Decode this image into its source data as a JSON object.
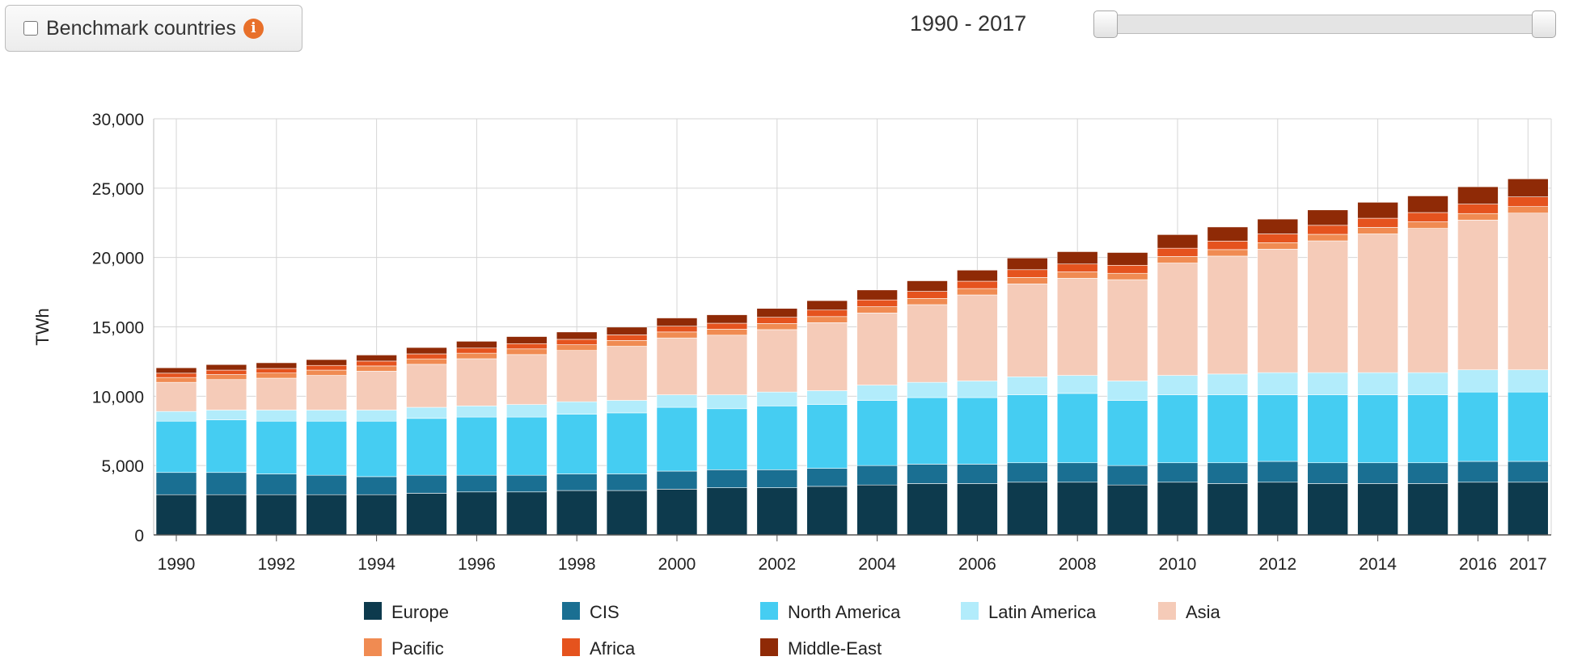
{
  "controls": {
    "benchmark_label": "Benchmark countries",
    "info_glyph": "i",
    "range_label": "1990 - 2017",
    "range_start": 1990,
    "range_end": 2017
  },
  "colors": {
    "Europe": "#0d3a4d",
    "CIS": "#1a6f92",
    "North America": "#45cdf2",
    "Latin America": "#b2ecfb",
    "Asia": "#f5cbb8",
    "Pacific": "#f08b52",
    "Africa": "#e5531e",
    "Middle-East": "#8f2a06"
  },
  "chart_data": {
    "type": "bar",
    "stacked": true,
    "ylabel": "TWh",
    "xlabel": "",
    "ylim": [
      0,
      30000
    ],
    "yticks": [
      "0",
      "5,000",
      "10,000",
      "15,000",
      "20,000",
      "25,000",
      "30,000"
    ],
    "xtick_labels": [
      "1990",
      "1992",
      "1994",
      "1996",
      "1998",
      "2000",
      "2002",
      "2004",
      "2006",
      "2008",
      "2010",
      "2012",
      "2014",
      "2016",
      "2017"
    ],
    "categories": [
      "1990",
      "1991",
      "1992",
      "1993",
      "1994",
      "1995",
      "1996",
      "1997",
      "1998",
      "1999",
      "2000",
      "2001",
      "2002",
      "2003",
      "2004",
      "2005",
      "2006",
      "2007",
      "2008",
      "2009",
      "2010",
      "2011",
      "2012",
      "2013",
      "2014",
      "2015",
      "2016",
      "2017"
    ],
    "grid": true,
    "legend_position": "bottom",
    "series": [
      {
        "name": "Europe",
        "values": [
          2900,
          2900,
          2900,
          2900,
          2900,
          3000,
          3100,
          3100,
          3200,
          3200,
          3300,
          3400,
          3400,
          3500,
          3600,
          3700,
          3700,
          3800,
          3800,
          3600,
          3800,
          3700,
          3800,
          3700,
          3700,
          3700,
          3800,
          3800
        ]
      },
      {
        "name": "CIS",
        "values": [
          1600,
          1600,
          1500,
          1400,
          1300,
          1300,
          1200,
          1200,
          1200,
          1200,
          1300,
          1300,
          1300,
          1300,
          1400,
          1400,
          1400,
          1400,
          1400,
          1400,
          1400,
          1500,
          1500,
          1500,
          1500,
          1500,
          1500,
          1500
        ]
      },
      {
        "name": "North America",
        "values": [
          3700,
          3800,
          3800,
          3900,
          4000,
          4100,
          4200,
          4200,
          4300,
          4400,
          4600,
          4400,
          4600,
          4600,
          4700,
          4800,
          4800,
          4900,
          5000,
          4700,
          4900,
          4900,
          4800,
          4900,
          4900,
          4900,
          5000,
          5000
        ]
      },
      {
        "name": "Latin America",
        "values": [
          700,
          700,
          800,
          800,
          800,
          800,
          800,
          900,
          900,
          900,
          900,
          1000,
          1000,
          1000,
          1100,
          1100,
          1200,
          1300,
          1300,
          1400,
          1400,
          1500,
          1600,
          1600,
          1600,
          1600,
          1600,
          1600
        ]
      },
      {
        "name": "Asia",
        "values": [
          2100,
          2200,
          2300,
          2500,
          2800,
          3100,
          3400,
          3600,
          3700,
          3900,
          4100,
          4300,
          4500,
          4900,
          5200,
          5600,
          6200,
          6700,
          7000,
          7300,
          8100,
          8500,
          8900,
          9500,
          10000,
          10400,
          10800,
          11300
        ]
      },
      {
        "name": "Pacific",
        "values": [
          350,
          360,
          370,
          380,
          380,
          390,
          400,
          410,
          410,
          420,
          430,
          430,
          440,
          440,
          450,
          450,
          460,
          460,
          460,
          460,
          470,
          470,
          470,
          470,
          470,
          470,
          470,
          470
        ]
      },
      {
        "name": "Africa",
        "values": [
          310,
          320,
          330,
          340,
          350,
          360,
          370,
          380,
          390,
          400,
          420,
          430,
          450,
          470,
          490,
          510,
          530,
          560,
          570,
          580,
          600,
          610,
          630,
          650,
          660,
          670,
          680,
          700
        ]
      },
      {
        "name": "Middle-East",
        "values": [
          390,
          400,
          410,
          420,
          440,
          460,
          490,
          510,
          530,
          560,
          590,
          610,
          640,
          680,
          720,
          760,
          800,
          840,
          890,
          920,
          980,
          1020,
          1070,
          1110,
          1150,
          1200,
          1250,
          1300
        ]
      }
    ]
  }
}
